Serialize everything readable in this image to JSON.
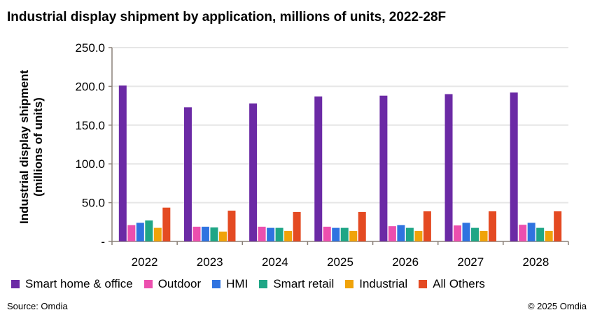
{
  "title": "Industrial display shipment by application, millions of units, 2022-28F",
  "source": "Source: Omdia",
  "copyright": "© 2025 Omdia",
  "chart_data": {
    "type": "bar",
    "title": "Industrial display shipment by application, millions of units, 2022-28F",
    "ylabel": "Industrial display shipment (millions of units)",
    "ylabel_lines": [
      "Industrial display shipment",
      "(millions of units)"
    ],
    "xlabel": "",
    "ylim": [
      0,
      250
    ],
    "yticks": [
      0,
      50,
      100,
      150,
      200,
      250
    ],
    "ytick_labels": [
      "-",
      "50.0",
      "100.0",
      "150.0",
      "200.0",
      "250.0"
    ],
    "grid": true,
    "legend_placement": "bottom",
    "categories": [
      "2022",
      "2023",
      "2024",
      "2025",
      "2026",
      "2027",
      "2028"
    ],
    "series": [
      {
        "name": "Smart home & office",
        "color": "#6b2aa5",
        "values": [
          201,
          173,
          178,
          187,
          188,
          190,
          192
        ]
      },
      {
        "name": "Outdoor",
        "color": "#ec4fae",
        "values": [
          21,
          19,
          19,
          19,
          19.7,
          20.6,
          21.5
        ]
      },
      {
        "name": "HMI",
        "color": "#2f73e0",
        "values": [
          24,
          19,
          17.5,
          17.5,
          21,
          24,
          24
        ]
      },
      {
        "name": "Smart retail",
        "color": "#1fa686",
        "values": [
          27,
          18,
          17.5,
          17.5,
          17.5,
          17.5,
          17.5
        ]
      },
      {
        "name": "Industrial",
        "color": "#f0a30a",
        "values": [
          17.5,
          12.7,
          13.6,
          13.6,
          13.6,
          13.6,
          13.6
        ]
      },
      {
        "name": "All Others",
        "color": "#e44a22",
        "values": [
          43.6,
          39.7,
          38,
          38,
          38.8,
          38.8,
          38.8
        ]
      }
    ]
  }
}
